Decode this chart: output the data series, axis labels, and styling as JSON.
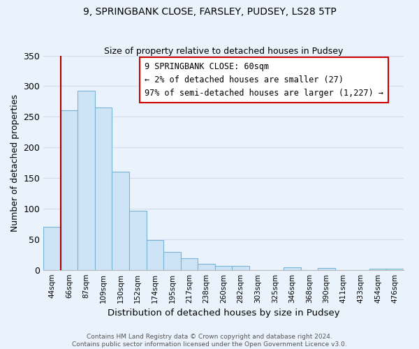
{
  "title": "9, SPRINGBANK CLOSE, FARSLEY, PUDSEY, LS28 5TP",
  "subtitle": "Size of property relative to detached houses in Pudsey",
  "xlabel": "Distribution of detached houses by size in Pudsey",
  "ylabel": "Number of detached properties",
  "bar_labels": [
    "44sqm",
    "66sqm",
    "87sqm",
    "109sqm",
    "130sqm",
    "152sqm",
    "174sqm",
    "195sqm",
    "217sqm",
    "238sqm",
    "260sqm",
    "282sqm",
    "303sqm",
    "325sqm",
    "346sqm",
    "368sqm",
    "390sqm",
    "411sqm",
    "433sqm",
    "454sqm",
    "476sqm"
  ],
  "bar_values": [
    70,
    260,
    292,
    265,
    160,
    97,
    49,
    29,
    19,
    10,
    7,
    6,
    0,
    0,
    4,
    0,
    3,
    0,
    0,
    2,
    2
  ],
  "bar_color": "#cce4f5",
  "bar_edge_color": "#7ab4d4",
  "highlight_line_color": "#aa0000",
  "annotation_text": "9 SPRINGBANK CLOSE: 60sqm\n← 2% of detached houses are smaller (27)\n97% of semi-detached houses are larger (1,227) →",
  "annotation_box_color": "#ffffff",
  "annotation_box_edge": "#cc0000",
  "ylim": [
    0,
    350
  ],
  "yticks": [
    0,
    50,
    100,
    150,
    200,
    250,
    300,
    350
  ],
  "footer_text": "Contains HM Land Registry data © Crown copyright and database right 2024.\nContains public sector information licensed under the Open Government Licence v3.0.",
  "bg_color": "#eaf2fb",
  "grid_color": "#d0dff0",
  "title_fontsize": 10,
  "subtitle_fontsize": 9
}
